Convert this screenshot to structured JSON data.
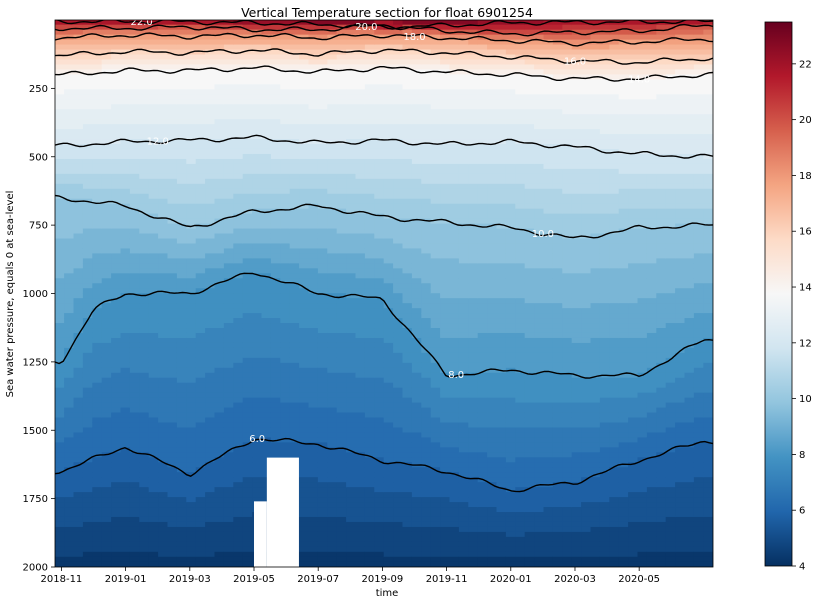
{
  "chart_data": {
    "type": "heatmap",
    "title": "Vertical Temperature section for float 6901254",
    "xlabel": "time",
    "ylabel": "Sea water pressure, equals 0 at sea-level",
    "x_ticks": [
      "2018-11",
      "2019-01",
      "2019-03",
      "2019-05",
      "2019-07",
      "2019-09",
      "2019-11",
      "2020-01",
      "2020-03",
      "2020-05"
    ],
    "y_ticks": [
      250,
      500,
      750,
      1000,
      1250,
      1500,
      1750,
      2000
    ],
    "ylim": [
      2000,
      0
    ],
    "y_inverted": true,
    "colorbar": {
      "colormap": "RdBu_r",
      "range": [
        4,
        23.5
      ],
      "ticks": [
        4,
        6,
        8,
        10,
        12,
        14,
        16,
        18,
        20,
        22
      ],
      "levels_step": 0.5
    },
    "contours": [
      {
        "level": 22.0,
        "label": "22.0",
        "pressure_by_month": [
          [
            0,
            5
          ],
          [
            3,
            5
          ],
          [
            6,
            10
          ],
          [
            10.5,
            25
          ],
          [
            12,
            20
          ],
          [
            14,
            10
          ],
          [
            20,
            5
          ]
        ]
      },
      {
        "level": 20.0,
        "label": "20.0",
        "pressure_by_month": [
          [
            0,
            30
          ],
          [
            2,
            30
          ],
          [
            4,
            25
          ],
          [
            6,
            35
          ],
          [
            8,
            35
          ],
          [
            10,
            20
          ],
          [
            12,
            40
          ],
          [
            14,
            50
          ],
          [
            16,
            45
          ],
          [
            18,
            40
          ],
          [
            20,
            20
          ]
        ]
      },
      {
        "level": 18.0,
        "label": "18.0",
        "pressure_by_month": [
          [
            0,
            65
          ],
          [
            2,
            55
          ],
          [
            4,
            60
          ],
          [
            6,
            55
          ],
          [
            8,
            65
          ],
          [
            10,
            55
          ],
          [
            12,
            65
          ],
          [
            14,
            75
          ],
          [
            16,
            85
          ],
          [
            18,
            80
          ],
          [
            20,
            70
          ]
        ]
      },
      {
        "level": 16.0,
        "label": "16.0",
        "pressure_by_month": [
          [
            0,
            130
          ],
          [
            2,
            115
          ],
          [
            4,
            120
          ],
          [
            6,
            110
          ],
          [
            8,
            125
          ],
          [
            10,
            110
          ],
          [
            12,
            120
          ],
          [
            14,
            135
          ],
          [
            16,
            150
          ],
          [
            18,
            155
          ],
          [
            20,
            140
          ]
        ]
      },
      {
        "level": 14.0,
        "label": "14.0",
        "pressure_by_month": [
          [
            0,
            200
          ],
          [
            2,
            185
          ],
          [
            4,
            185
          ],
          [
            6,
            175
          ],
          [
            8,
            190
          ],
          [
            10,
            175
          ],
          [
            12,
            190
          ],
          [
            14,
            200
          ],
          [
            16,
            215
          ],
          [
            18,
            215
          ],
          [
            20,
            200
          ]
        ]
      },
      {
        "level": 12.0,
        "label": "12.0",
        "pressure_by_month": [
          [
            0,
            460
          ],
          [
            2,
            445
          ],
          [
            4,
            440
          ],
          [
            6,
            430
          ],
          [
            8,
            450
          ],
          [
            10,
            440
          ],
          [
            12,
            455
          ],
          [
            14,
            445
          ],
          [
            16,
            465
          ],
          [
            18,
            490
          ],
          [
            20,
            500
          ]
        ]
      },
      {
        "level": 10.0,
        "label": "10.0",
        "pressure_by_month": [
          [
            0,
            650
          ],
          [
            2,
            680
          ],
          [
            4,
            760
          ],
          [
            6,
            700
          ],
          [
            8,
            680
          ],
          [
            10,
            720
          ],
          [
            12,
            740
          ],
          [
            14,
            760
          ],
          [
            16,
            800
          ],
          [
            18,
            760
          ],
          [
            20,
            750
          ]
        ]
      },
      {
        "level": 8.0,
        "label": "8.0",
        "pressure_by_month": [
          [
            0,
            1250
          ],
          [
            1,
            1060
          ],
          [
            2,
            1000
          ],
          [
            4,
            1000
          ],
          [
            6,
            920
          ],
          [
            8,
            1000
          ],
          [
            10,
            1020
          ],
          [
            12,
            1300
          ],
          [
            14,
            1280
          ],
          [
            16,
            1300
          ],
          [
            18,
            1300
          ],
          [
            20,
            1170
          ]
        ]
      },
      {
        "level": 6.0,
        "label": "6.0",
        "pressure_by_month": [
          [
            0,
            1650
          ],
          [
            2,
            1560
          ],
          [
            4,
            1660
          ],
          [
            6,
            1530
          ],
          [
            8,
            1550
          ],
          [
            10,
            1610
          ],
          [
            12,
            1650
          ],
          [
            14,
            1720
          ],
          [
            16,
            1690
          ],
          [
            18,
            1610
          ],
          [
            20,
            1540
          ]
        ]
      }
    ],
    "no_data_regions": [
      {
        "month_from": 6.4,
        "month_to": 7.4,
        "pressure_from": 1600,
        "pressure_to": 2000
      },
      {
        "month_from": 6.0,
        "month_to": 6.4,
        "pressure_from": 1760,
        "pressure_to": 2000
      }
    ],
    "x_range_months_from_2018_11": [
      -0.2,
      20.3
    ]
  }
}
